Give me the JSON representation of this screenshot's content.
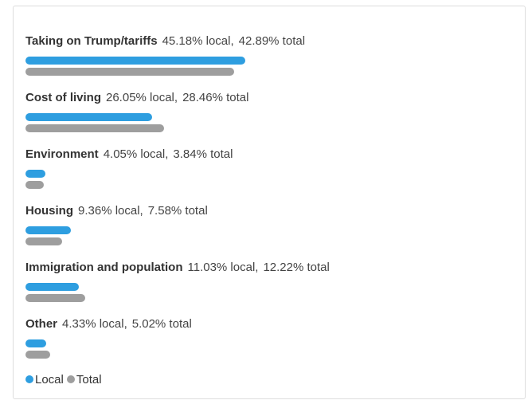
{
  "chart_data": {
    "type": "bar",
    "orientation": "horizontal",
    "categories": [
      "Taking on Trump/tariffs",
      "Cost of living",
      "Environment",
      "Housing",
      "Immigration and population",
      "Other"
    ],
    "series": [
      {
        "name": "Local",
        "values": [
          45.18,
          26.05,
          4.05,
          9.36,
          11.03,
          4.33
        ],
        "color": "#2e9ee0"
      },
      {
        "name": "Total",
        "values": [
          42.89,
          28.46,
          3.84,
          7.58,
          12.22,
          5.02
        ],
        "color": "#9e9e9e"
      }
    ],
    "rows": [
      {
        "category": "Taking on Trump/tariffs",
        "local_text": "45.18% local,",
        "total_text": "42.89% total",
        "local": 45.18,
        "total": 42.89
      },
      {
        "category": "Cost of living",
        "local_text": "26.05% local,",
        "total_text": "28.46% total",
        "local": 26.05,
        "total": 28.46
      },
      {
        "category": "Environment",
        "local_text": "4.05% local,",
        "total_text": "3.84% total",
        "local": 4.05,
        "total": 3.84
      },
      {
        "category": "Housing",
        "local_text": "9.36% local,",
        "total_text": "7.58% total",
        "local": 9.36,
        "total": 7.58
      },
      {
        "category": "Immigration and population",
        "local_text": "11.03% local,",
        "total_text": "12.22% total",
        "local": 11.03,
        "total": 12.22
      },
      {
        "category": "Other",
        "local_text": "4.33% local,",
        "total_text": "5.02% total",
        "local": 4.33,
        "total": 5.02
      }
    ],
    "legend": {
      "placement": "bottom-left",
      "items": [
        {
          "label": "Local",
          "color": "#2e9ee0"
        },
        {
          "label": "Total",
          "color": "#9e9e9e"
        }
      ]
    },
    "grid": false,
    "title": "",
    "xlabel": "",
    "ylabel": ""
  }
}
